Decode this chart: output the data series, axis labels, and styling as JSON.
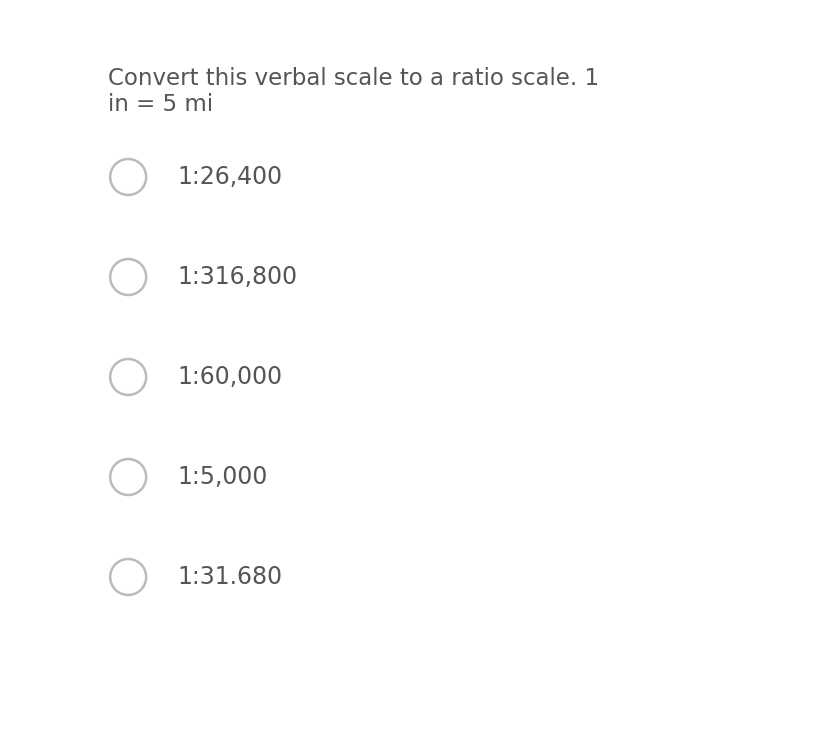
{
  "title_line1": "Convert this verbal scale to a ratio scale. 1",
  "title_line2": "in = 5 mi",
  "options": [
    "1:26,400",
    "1:316,800",
    "1:60,000",
    "1:5,000",
    "1:31.680"
  ],
  "background_color": "#ffffff",
  "text_color": "#555555",
  "circle_edge_color": "#bbbbbb",
  "circle_face_color": "#ffffff",
  "title_fontsize": 16.5,
  "option_fontsize": 17,
  "fig_width": 8.27,
  "fig_height": 7.47
}
